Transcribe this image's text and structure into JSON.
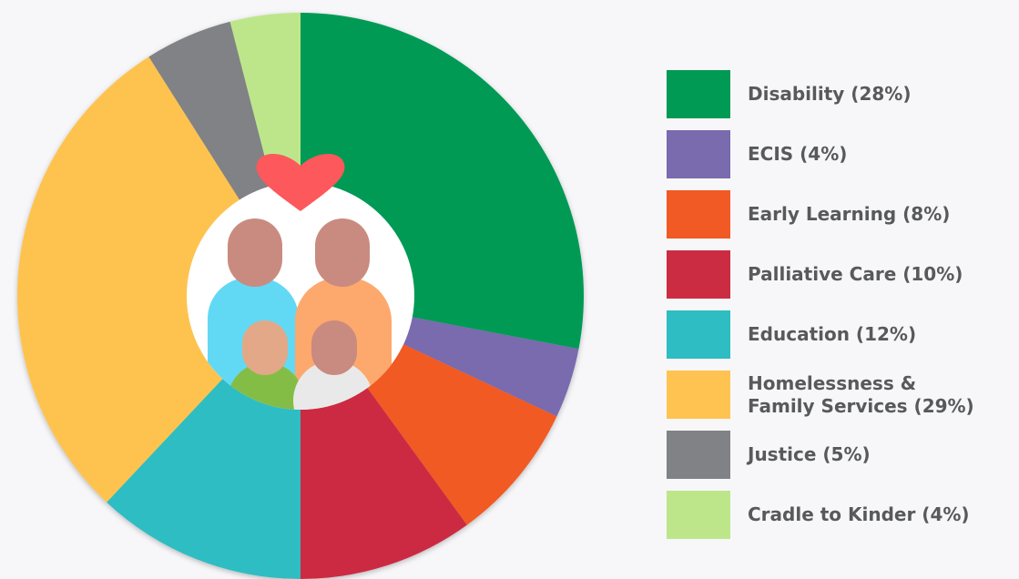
{
  "chart_data": {
    "type": "pie",
    "categories": [
      "Disability (28%)",
      "ECIS (4%)",
      "Early Learning (8%)",
      "Palliative Care (10%)",
      "Education (12%)",
      "Homelessness &\nFamily Services (29%)",
      "Justice (5%)",
      "Cradle to Kinder (4%)"
    ],
    "values": [
      28,
      4,
      8,
      10,
      12,
      29,
      5,
      4
    ],
    "colors": [
      "#009a55",
      "#7a6aae",
      "#f15a24",
      "#cc2c42",
      "#2ebdc2",
      "#fec350",
      "#808285",
      "#bde68a"
    ]
  }
}
